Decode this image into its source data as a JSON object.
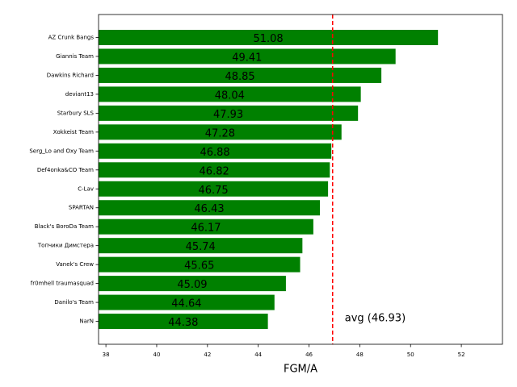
{
  "chart_data": {
    "type": "barh",
    "xlabel": "FGM/A",
    "categories": [
      "AZ Crunk Bangs",
      "Giannis Team",
      "Dawkins Richard",
      "deviant13",
      "Starbury SLS",
      "Xokkeist Team",
      "Serg_Lo and Oxy Team",
      "Def4onka&CO Team",
      "C-Lav",
      "SPARTAN",
      "Black's BoroDa Team",
      "Топчики Димстера",
      "Vanek's Crew",
      "fr0mhell traumasquad",
      "Danilo's Team",
      "NarN"
    ],
    "values": [
      51.08,
      49.41,
      48.85,
      48.04,
      47.93,
      47.28,
      46.88,
      46.82,
      46.75,
      46.43,
      46.17,
      45.74,
      45.65,
      45.09,
      44.64,
      44.38
    ],
    "color": "#008000",
    "xlim": [
      37.71,
      53.62
    ],
    "xticks": [
      38,
      40,
      42,
      44,
      46,
      48,
      50,
      52
    ],
    "avg_line": {
      "value": 46.93,
      "label": "avg (46.93)",
      "color": "#ff0000"
    }
  }
}
